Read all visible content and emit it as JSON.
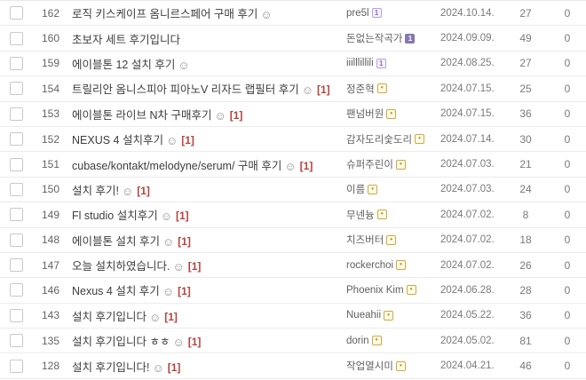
{
  "board": {
    "posts": [
      {
        "id": "162",
        "title": "로직 키스케이프 옴니르스페어 구매 후기",
        "emoji": true,
        "comments": "",
        "author": "pre5l",
        "badge": "purple-outline",
        "date": "2024.10.14.",
        "views": "27",
        "likes": "0"
      },
      {
        "id": "160",
        "title": "초보자 세트 후기입니다",
        "emoji": false,
        "comments": "",
        "author": "돈없는작곡가",
        "badge": "purple-filled",
        "date": "2024.09.09.",
        "views": "49",
        "likes": "0"
      },
      {
        "id": "159",
        "title": "에이블톤 12 설치 후기",
        "emoji": true,
        "comments": "",
        "author": "iiilllillili",
        "badge": "purple-outline",
        "date": "2024.08.25.",
        "views": "27",
        "likes": "0"
      },
      {
        "id": "154",
        "title": "트릴리안 옴니스피아 피아노V 리자드 랩필터 후기",
        "emoji": true,
        "comments": "[1]",
        "author": "정준혁",
        "badge": "gold",
        "date": "2024.07.15.",
        "views": "25",
        "likes": "0"
      },
      {
        "id": "153",
        "title": "에이블톤 라이브 N차 구매후기",
        "emoji": true,
        "comments": "[1]",
        "author": "팬넘버원",
        "badge": "gold",
        "date": "2024.07.15.",
        "views": "36",
        "likes": "0"
      },
      {
        "id": "152",
        "title": "NEXUS 4 설치후기",
        "emoji": true,
        "comments": "[1]",
        "author": "감자도리숯도리",
        "badge": "gold",
        "date": "2024.07.14.",
        "views": "30",
        "likes": "0"
      },
      {
        "id": "151",
        "title": "cubase/kontakt/melodyne/serum/ 구매 후기",
        "emoji": true,
        "comments": "[1]",
        "author": "슈퍼주린이",
        "badge": "gold",
        "date": "2024.07.03.",
        "views": "21",
        "likes": "0"
      },
      {
        "id": "150",
        "title": "설치 후기!",
        "emoji": true,
        "comments": "[1]",
        "author": "이름",
        "badge": "gold",
        "date": "2024.07.03.",
        "views": "24",
        "likes": "0"
      },
      {
        "id": "149",
        "title": "Fl studio 설치후기",
        "emoji": true,
        "comments": "[1]",
        "author": "무넨늉",
        "badge": "gold",
        "date": "2024.07.02.",
        "views": "8",
        "likes": "0"
      },
      {
        "id": "148",
        "title": "에이블톤 설치 후기",
        "emoji": true,
        "comments": "[1]",
        "author": "치즈버터",
        "badge": "gold",
        "date": "2024.07.02.",
        "views": "18",
        "likes": "0"
      },
      {
        "id": "147",
        "title": "오늘 설치하였습니다.",
        "emoji": true,
        "comments": "[1]",
        "author": "rockerchoi",
        "badge": "gold",
        "date": "2024.07.02.",
        "views": "26",
        "likes": "0"
      },
      {
        "id": "146",
        "title": "Nexus 4 설치 후기",
        "emoji": true,
        "comments": "[1]",
        "author": "Phoenix Kim",
        "badge": "gold",
        "date": "2024.06.28.",
        "views": "28",
        "likes": "0"
      },
      {
        "id": "143",
        "title": "설치 후기입니다",
        "emoji": true,
        "comments": "[1]",
        "author": "Nueahii",
        "badge": "gold",
        "date": "2024.05.22.",
        "views": "36",
        "likes": "0"
      },
      {
        "id": "135",
        "title": "설치 후기입니다 ㅎㅎ",
        "emoji": true,
        "comments": "[1]",
        "author": "dorin",
        "badge": "gold",
        "date": "2024.05.02.",
        "views": "81",
        "likes": "0"
      },
      {
        "id": "128",
        "title": "설치 후기입니다!",
        "emoji": true,
        "comments": "[1]",
        "author": "작업열시미",
        "badge": "gold",
        "date": "2024.04.21.",
        "views": "46",
        "likes": "0"
      }
    ]
  },
  "icons": {
    "smiley": "☺",
    "badge_glyphs": {
      "purple-outline": "1",
      "purple-filled": "1",
      "gold": "•"
    }
  },
  "colors": {
    "comment_red": "#b8423e",
    "badge_purple": "#9b7fd4",
    "badge_gold": "#cfa93f"
  }
}
